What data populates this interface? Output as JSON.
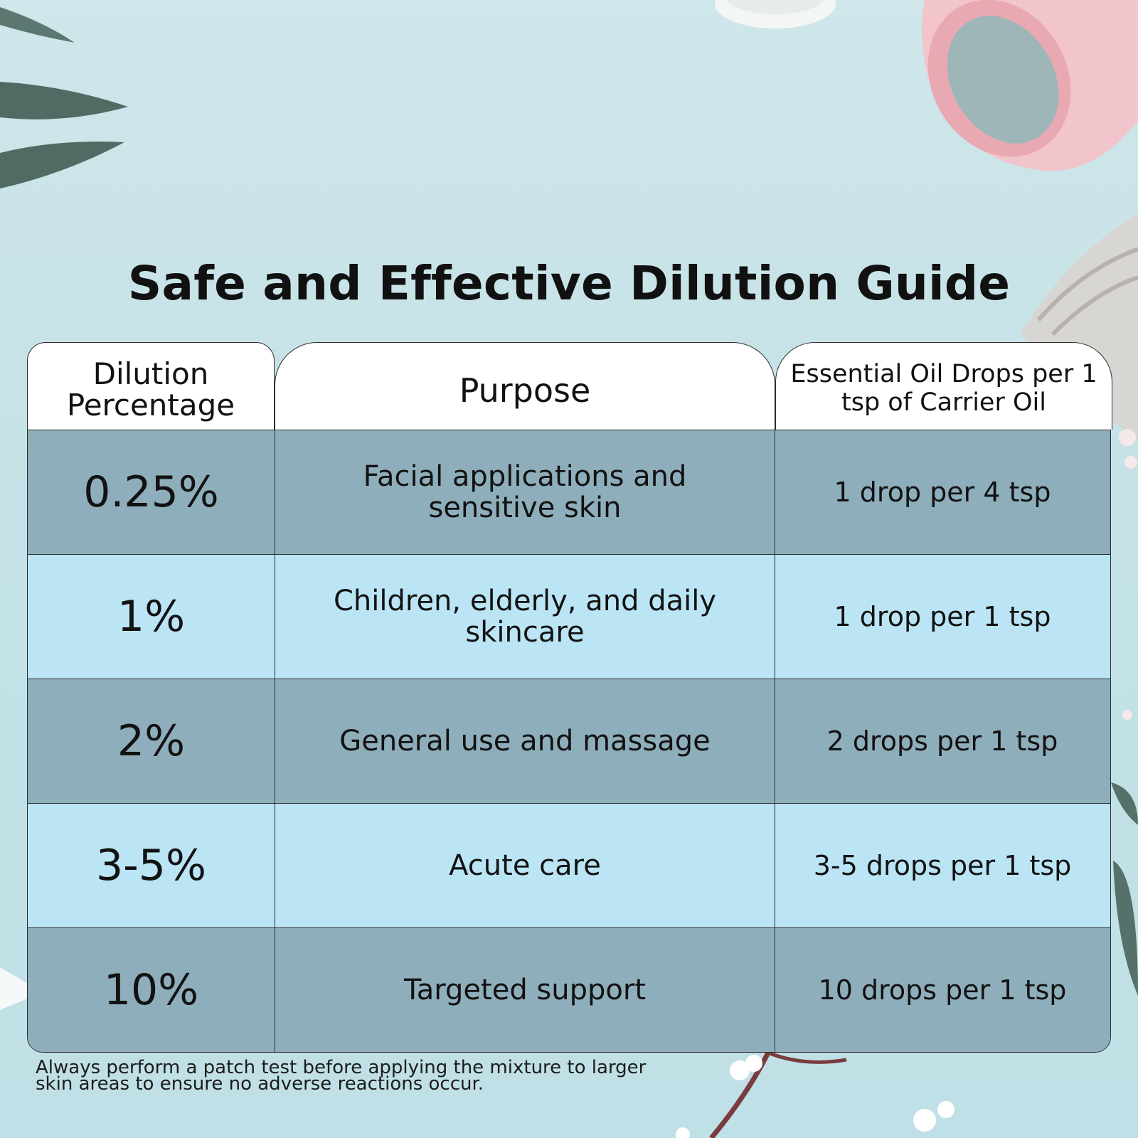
{
  "title": "Safe and Effective Dilution Guide",
  "colors": {
    "header_bg": "#ffffff",
    "row_dark": "#8eaebb",
    "row_light": "#bbe5f5",
    "border": "#2b2b2b",
    "background": "#c4e2e7"
  },
  "table": {
    "headers": [
      "Dilution Percentage",
      "Purpose",
      "Essential Oil Drops per 1 tsp of Carrier Oil"
    ],
    "rows": [
      {
        "dilution": "0.25%",
        "purpose": "Facial applications and sensitive skin",
        "drops": "1 drop per 4 tsp"
      },
      {
        "dilution": "1%",
        "purpose": "Children, elderly, and daily skincare",
        "drops": "1 drop per 1 tsp"
      },
      {
        "dilution": "2%",
        "purpose": "General use and massage",
        "drops": "2 drops per 1 tsp"
      },
      {
        "dilution": "3-5%",
        "purpose": "Acute care",
        "drops": "3-5 drops per 1 tsp"
      },
      {
        "dilution": "10%",
        "purpose": "Targeted support",
        "drops": "10 drops per 1 tsp"
      }
    ]
  },
  "footnote": "Always perform a patch test before applying the mixture to larger skin areas to ensure no adverse reactions occur."
}
